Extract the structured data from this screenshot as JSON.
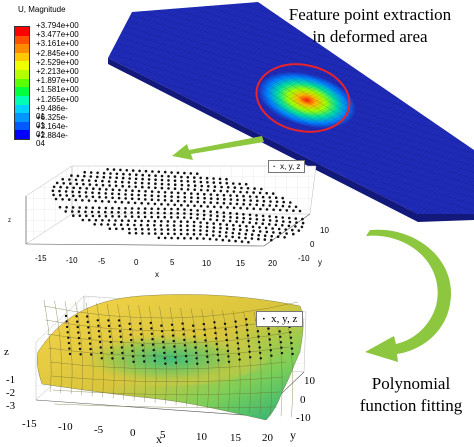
{
  "contour_legend": {
    "title": "U, Magnitude",
    "values": [
      "+3.794e+00",
      "+3.477e+00",
      "+3.161e+00",
      "+2.845e+00",
      "+2.529e+00",
      "+2.213e+00",
      "+1.897e+00",
      "+1.581e+00",
      "+1.265e+00",
      "+9.486e-01",
      "+6.325e-01",
      "+3.164e-01",
      "+2.884e-04"
    ],
    "colors": [
      "#ff0000",
      "#ff5000",
      "#ff8c00",
      "#ffc800",
      "#f0ff00",
      "#b4ff00",
      "#5aff00",
      "#00ff3c",
      "#00ffb4",
      "#00d2ff",
      "#0096ff",
      "#005aff",
      "#0000ff"
    ]
  },
  "labels": {
    "feature_extraction": [
      "Feature point extraction",
      "in deformed area"
    ],
    "polynomial_fitting": [
      "Polynomial",
      "function fitting"
    ]
  },
  "scatter_plot": {
    "legend": "x, y, z",
    "x_ticks": [
      "-15",
      "-10",
      "-5",
      "0",
      "5",
      "10",
      "15",
      "20"
    ],
    "y_ticks": [
      "-10",
      "0",
      "10"
    ],
    "x_label": "x",
    "y_label": "y",
    "z_label": "z"
  },
  "surface_plot": {
    "legend": "x, y, z",
    "x_ticks": [
      "-15",
      "-10",
      "-5",
      "0",
      "5",
      "10",
      "15",
      "20"
    ],
    "y_ticks": [
      "10",
      "0",
      "-10"
    ],
    "z_ticks": [
      "-1",
      "-2",
      "-3"
    ],
    "x_label": "x",
    "y_label": "y",
    "z_label": "z"
  },
  "colors": {
    "plate": "#1f2bb6",
    "mesh": "#0a1470",
    "ellipse": "#e8242a",
    "arrow_green": "#8dc63f",
    "surface_yellow": "#f4c23a",
    "surface_green": "#2ab27a"
  }
}
